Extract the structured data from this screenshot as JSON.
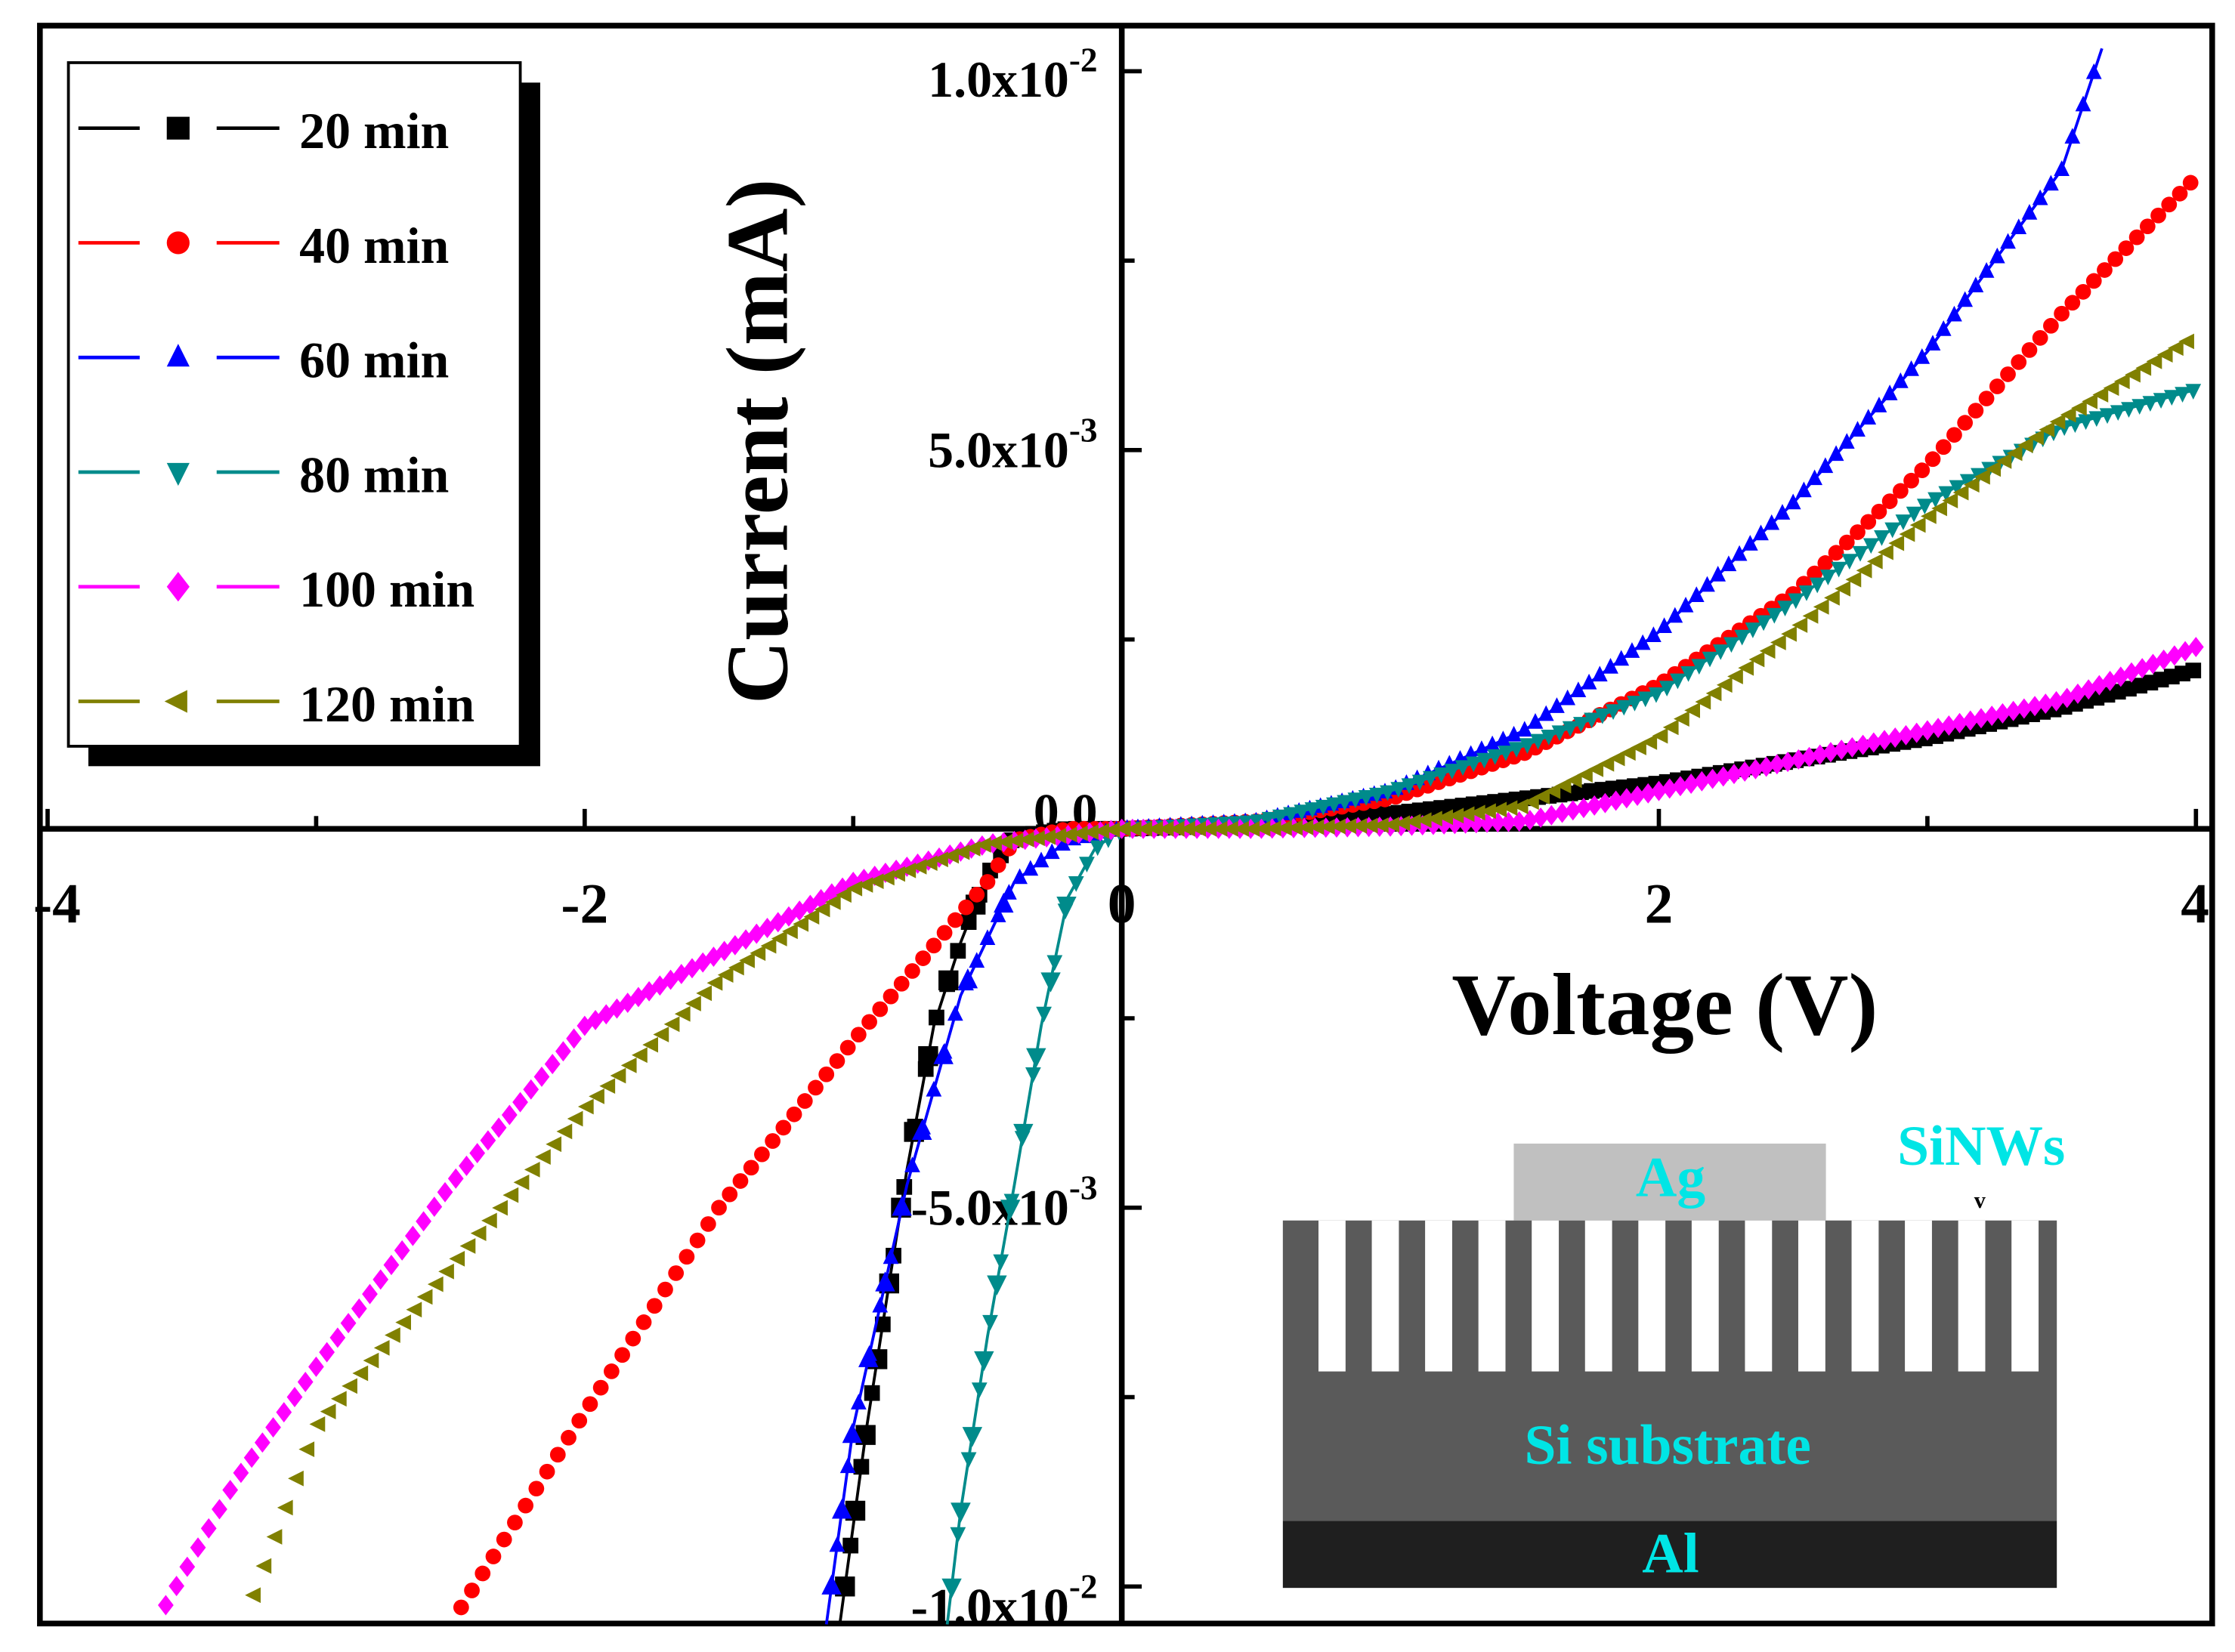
{
  "chart_data": {
    "type": "scatter",
    "title": "",
    "xlabel": "Voltage (V)",
    "ylabel": "Current (mA)",
    "xlim": [
      -4,
      4
    ],
    "ylim": [
      -0.0105,
      0.0105
    ],
    "x_ticks": [
      {
        "value": -4,
        "label": "-4"
      },
      {
        "value": -2,
        "label": "-2"
      },
      {
        "value": 0,
        "label": "0"
      },
      {
        "value": 2,
        "label": "2"
      },
      {
        "value": 4,
        "label": "4"
      }
    ],
    "y_ticks": [
      {
        "value": 0.01,
        "mant": "1.0x10",
        "exp": "-2"
      },
      {
        "value": 0.005,
        "mant": "5.0x10",
        "exp": "-3"
      },
      {
        "value": 0,
        "mant": "0.0",
        "exp": ""
      },
      {
        "value": -0.005,
        "mant": "-5.0x10",
        "exp": "-3"
      },
      {
        "value": -0.01,
        "mant": "-1.0x10",
        "exp": "-2"
      }
    ],
    "grid": false,
    "legend_position": "top-left",
    "series": [
      {
        "name": "20 min",
        "color": "#000000",
        "marker": "square",
        "line": true,
        "x": [
          -1.05,
          -0.95,
          -0.8,
          -0.7,
          -0.6,
          -0.5,
          -0.4,
          -0.2,
          0,
          0.5,
          1,
          1.5,
          2,
          2.5,
          3,
          3.5,
          4
        ],
        "y": [
          -0.0105,
          -0.0079,
          -0.0045,
          -0.0026,
          -0.0015,
          -0.0006,
          -0.0001,
          0,
          0,
          5e-05,
          0.0002,
          0.0004,
          0.0006,
          0.0009,
          0.0012,
          0.0016,
          0.0021
        ]
      },
      {
        "name": "40 min",
        "color": "#ff0000",
        "marker": "circle",
        "line": false,
        "x": [
          -2.5,
          -2,
          -1.5,
          -1,
          -0.5,
          -0.4,
          -0.2,
          0,
          0.5,
          1,
          1.5,
          2,
          2.5,
          3,
          3.5,
          4
        ],
        "y": [
          -0.0105,
          -0.0077,
          -0.005,
          -0.0028,
          -0.0007,
          -0.00015,
          0,
          0,
          0.0001,
          0.0004,
          0.001,
          0.0019,
          0.0031,
          0.0048,
          0.0068,
          0.0086
        ]
      },
      {
        "name": "60 min",
        "color": "#0000ff",
        "marker": "triangle-up",
        "line": true,
        "x": [
          -1.1,
          -1.0,
          -0.8,
          -0.6,
          -0.4,
          -0.2,
          0,
          0.5,
          1,
          1.5,
          2,
          2.5,
          3,
          3.5,
          3.65
        ],
        "y": [
          -0.0105,
          -0.0079,
          -0.0047,
          -0.0022,
          -0.0007,
          -0.00015,
          0,
          0.0001,
          0.0005,
          0.0013,
          0.0026,
          0.0043,
          0.0063,
          0.0087,
          0.0103
        ]
      },
      {
        "name": "80 min",
        "color": "#008b8b",
        "marker": "triangle-down",
        "line": true,
        "x": [
          -0.65,
          -0.6,
          -0.5,
          -0.4,
          -0.3,
          -0.2,
          -0.1,
          0,
          0.5,
          1,
          1.5,
          2,
          2.5,
          3,
          3.5,
          4
        ],
        "y": [
          -0.0105,
          -0.009,
          -0.0067,
          -0.0047,
          -0.0026,
          -0.0009,
          -0.00026,
          0,
          0.0001,
          0.0005,
          0.0011,
          0.0018,
          0.003,
          0.0043,
          0.0053,
          0.0058
        ]
      },
      {
        "name": "100 min",
        "color": "#ff00ff",
        "marker": "diamond",
        "line": false,
        "x": [
          -3.6,
          -3.3,
          -3,
          -2.5,
          -2,
          -1.5,
          -1,
          -0.5,
          0,
          0.5,
          1,
          1.5,
          2,
          2.5,
          3,
          3.5,
          4
        ],
        "y": [
          -0.0105,
          -0.0086,
          -0.0071,
          -0.0047,
          -0.0026,
          -0.00165,
          -0.0007,
          -0.0002,
          0,
          0,
          3e-05,
          0.0001,
          0.0005,
          0.0009,
          0.0013,
          0.0017,
          0.0024
        ]
      },
      {
        "name": "120 min",
        "color": "#808000",
        "marker": "triangle-left",
        "line": false,
        "x": [
          -3.27,
          -3,
          -2.5,
          -2,
          -1.5,
          -1,
          -0.5,
          0,
          0.5,
          1,
          1.5,
          2,
          2.5,
          3,
          3.5,
          4
        ],
        "y": [
          -0.0105,
          -0.0079,
          -0.0058,
          -0.0037,
          -0.002,
          -0.0008,
          -0.0002,
          0,
          0,
          5e-05,
          0.0003,
          0.0012,
          0.0026,
          0.0041,
          0.0054,
          0.0065
        ]
      }
    ]
  },
  "inset": {
    "ag_label": "Ag",
    "sinws_label": "SiNWs",
    "substrate_label": "Si substrate",
    "al_label": "Al",
    "colors": {
      "ag": "#c0c0c0",
      "si": "#5a5a5a",
      "al": "#1f1f1f",
      "text": "#00e5e5"
    }
  }
}
